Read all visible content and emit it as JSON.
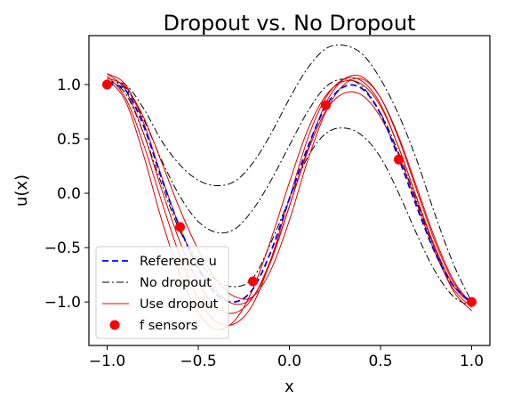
{
  "chart_data": {
    "type": "line",
    "title": "Dropout vs. No Dropout",
    "xlabel": "x",
    "ylabel": "u(x)",
    "xlim": [
      -1.1,
      1.1
    ],
    "ylim": [
      -1.4,
      1.45
    ],
    "xticks": [
      -1.0,
      -0.5,
      0.0,
      0.5,
      1.0
    ],
    "xtick_labels": [
      "−1.0",
      "−0.5",
      "0.0",
      "0.5",
      "1.0"
    ],
    "yticks": [
      1.0,
      0.5,
      0.0,
      -0.5,
      -1.0
    ],
    "ytick_labels": [
      "1.0",
      "0.5",
      "0.0",
      "−0.5",
      "−1.0"
    ],
    "grid": false,
    "legend_position": "lower-left",
    "legend": [
      {
        "label": "Reference u",
        "style": "dashed",
        "color": "#0000ee"
      },
      {
        "label": "No dropout",
        "style": "dashdot",
        "color": "#000000"
      },
      {
        "label": "Use dropout",
        "style": "solid",
        "color": "#dd0000"
      },
      {
        "label": "f sensors",
        "style": "marker",
        "color": "#ff0000"
      }
    ],
    "series": [
      {
        "name": "Reference u",
        "style": "dashed",
        "color": "#0000ee",
        "x": [
          -1.0,
          -0.9,
          -0.8,
          -0.7,
          -0.6,
          -0.5,
          -0.4,
          -0.3,
          -0.2,
          -0.1,
          0.0,
          0.1,
          0.2,
          0.3,
          0.4,
          0.5,
          0.6,
          0.7,
          0.8,
          0.9,
          1.0
        ],
        "y": [
          1.0,
          0.95,
          0.62,
          0.13,
          -0.32,
          -0.69,
          -0.93,
          -1.0,
          -0.88,
          -0.53,
          -0.05,
          0.42,
          0.8,
          0.98,
          0.96,
          0.73,
          0.32,
          -0.13,
          -0.55,
          -0.85,
          -1.0
        ]
      },
      {
        "name": "No dropout",
        "style": "dashdot",
        "color": "#000000",
        "x": [
          -1.0,
          -0.9,
          -0.8,
          -0.7,
          -0.6,
          -0.5,
          -0.4,
          -0.3,
          -0.2,
          -0.1,
          0.0,
          0.1,
          0.2,
          0.3,
          0.4,
          0.5,
          0.6,
          0.7,
          0.8,
          0.9,
          1.0
        ],
        "y": [
          1.02,
          1.0,
          0.78,
          0.48,
          0.26,
          0.12,
          0.07,
          0.11,
          0.28,
          0.55,
          0.87,
          1.15,
          1.33,
          1.36,
          1.28,
          1.05,
          0.72,
          0.3,
          -0.2,
          -0.65,
          -1.0
        ]
      },
      {
        "name": "No dropout",
        "style": "dashdot",
        "color": "#000000",
        "x": [
          -1.0,
          -0.9,
          -0.8,
          -0.7,
          -0.6,
          -0.5,
          -0.4,
          -0.3,
          -0.2,
          -0.1,
          0.0,
          0.1,
          0.2,
          0.3,
          0.4,
          0.5,
          0.6,
          0.7,
          0.8,
          0.9,
          1.0
        ],
        "y": [
          1.03,
          0.97,
          0.68,
          0.3,
          -0.03,
          -0.26,
          -0.36,
          -0.33,
          -0.15,
          0.12,
          0.44,
          0.75,
          0.98,
          1.05,
          0.98,
          0.74,
          0.37,
          -0.08,
          -0.52,
          -0.85,
          -1.02
        ]
      },
      {
        "name": "No dropout",
        "style": "dashdot",
        "color": "#000000",
        "x": [
          -1.0,
          -0.9,
          -0.8,
          -0.7,
          -0.6,
          -0.5,
          -0.4,
          -0.3,
          -0.2,
          -0.1,
          0.0,
          0.1,
          0.2,
          0.3,
          0.4,
          0.5,
          0.6,
          0.7,
          0.8,
          0.9,
          1.0
        ],
        "y": [
          1.04,
          0.92,
          0.55,
          0.08,
          -0.35,
          -0.62,
          -0.8,
          -0.86,
          -0.78,
          -0.45,
          -0.05,
          0.33,
          0.55,
          0.6,
          0.53,
          0.33,
          0.0,
          -0.38,
          -0.72,
          -0.95,
          -1.04
        ]
      },
      {
        "name": "Use dropout",
        "style": "solid",
        "color": "#dd0000",
        "x": [
          -1.0,
          -0.9,
          -0.8,
          -0.7,
          -0.6,
          -0.5,
          -0.4,
          -0.3,
          -0.2,
          -0.1,
          0.0,
          0.1,
          0.2,
          0.3,
          0.4,
          0.5,
          0.6,
          0.7,
          0.8,
          0.9,
          1.0
        ],
        "y": [
          1.08,
          0.88,
          0.45,
          -0.08,
          -0.58,
          -0.97,
          -1.18,
          -1.2,
          -1.02,
          -0.6,
          -0.05,
          0.5,
          0.88,
          1.05,
          1.03,
          0.82,
          0.42,
          -0.05,
          -0.52,
          -0.9,
          -1.08
        ]
      },
      {
        "name": "Use dropout",
        "style": "solid",
        "color": "#dd0000",
        "x": [
          -1.0,
          -0.9,
          -0.8,
          -0.7,
          -0.6,
          -0.5,
          -0.4,
          -0.3,
          -0.2,
          -0.1,
          0.0,
          0.1,
          0.2,
          0.3,
          0.4,
          0.5,
          0.6,
          0.7,
          0.8,
          0.9,
          1.0
        ],
        "y": [
          1.1,
          0.95,
          0.55,
          0.03,
          -0.45,
          -0.82,
          -1.05,
          -1.1,
          -0.96,
          -0.6,
          -0.12,
          0.38,
          0.76,
          0.92,
          0.9,
          0.7,
          0.35,
          -0.1,
          -0.55,
          -0.88,
          -1.05
        ]
      },
      {
        "name": "Use dropout",
        "style": "solid",
        "color": "#dd0000",
        "x": [
          -1.0,
          -0.9,
          -0.8,
          -0.7,
          -0.6,
          -0.5,
          -0.4,
          -0.3,
          -0.2,
          -0.1,
          0.0,
          0.1,
          0.2,
          0.3,
          0.4,
          0.5,
          0.6,
          0.7,
          0.8,
          0.9,
          1.0
        ],
        "y": [
          1.05,
          0.85,
          0.35,
          -0.25,
          -0.75,
          -1.1,
          -1.25,
          -1.17,
          -0.88,
          -0.42,
          0.1,
          0.58,
          0.9,
          1.03,
          1.0,
          0.8,
          0.42,
          -0.05,
          -0.5,
          -0.85,
          -1.02
        ]
      },
      {
        "name": "Use dropout",
        "style": "solid",
        "color": "#dd0000",
        "x": [
          -1.0,
          -0.9,
          -0.8,
          -0.7,
          -0.6,
          -0.5,
          -0.4,
          -0.3,
          -0.2,
          -0.1,
          0.0,
          0.1,
          0.2,
          0.3,
          0.4,
          0.5,
          0.6,
          0.7,
          0.8,
          0.9,
          1.0
        ],
        "y": [
          1.1,
          1.0,
          0.65,
          0.15,
          -0.32,
          -0.68,
          -0.9,
          -1.02,
          -0.95,
          -0.62,
          -0.12,
          0.4,
          0.83,
          1.05,
          1.07,
          0.88,
          0.5,
          0.02,
          -0.45,
          -0.82,
          -1.03
        ]
      },
      {
        "name": "Use dropout",
        "style": "solid",
        "color": "#dd0000",
        "x": [
          -1.0,
          -0.9,
          -0.8,
          -0.7,
          -0.6,
          -0.5,
          -0.4,
          -0.3,
          -0.2,
          -0.1,
          0.0,
          0.1,
          0.2,
          0.3,
          0.4,
          0.5,
          0.6,
          0.7,
          0.8,
          0.9,
          1.0
        ],
        "y": [
          1.06,
          0.98,
          0.7,
          0.28,
          -0.15,
          -0.52,
          -0.8,
          -0.95,
          -0.95,
          -0.7,
          -0.25,
          0.3,
          0.75,
          1.0,
          1.05,
          0.88,
          0.52,
          0.05,
          -0.42,
          -0.8,
          -1.02
        ]
      }
    ],
    "sensors": {
      "name": "f sensors",
      "color": "#ff0000",
      "x": [
        -1.0,
        -0.6,
        -0.2,
        0.2,
        0.6,
        1.0
      ],
      "y": [
        1.0,
        -0.31,
        -0.81,
        0.81,
        0.31,
        -1.0
      ]
    }
  }
}
